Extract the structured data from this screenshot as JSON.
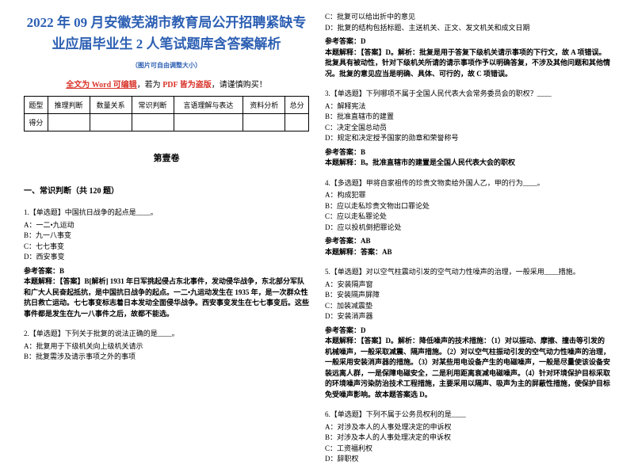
{
  "header": {
    "title": "2022 年 09 月安徽芜湖市教育局公开招聘紧缺专业应届毕业生 2 人笔试题库含答案解析",
    "subtitle": "（图片可自由调整大小）",
    "editable_prefix": "全文为 Word 可编辑",
    "editable_mid": "，若为 ",
    "editable_warn": "PDF 皆为盗版",
    "editable_suffix": "，请谨慎购买！"
  },
  "table": {
    "headers": [
      "题型",
      "推理判断",
      "数量关系",
      "常识判断",
      "言语理解与表达",
      "资料分析",
      "总分"
    ],
    "row_label": "得分"
  },
  "juan": "第壹卷",
  "category": "一、常识判断（共 120 题）",
  "q1": {
    "text": "1.【单选题】中国抗日战争的起点是____。",
    "a": "A：一二•九运动",
    "b": "B：九一八事变",
    "c": "C：七七事变",
    "d": "D：西安事变",
    "ans_label": "参考答案：B",
    "ans_text": "本题解释：【答案】B[解析] 1931 年日军挑起侵占东北事件，发动侵华战争，东北部分军队和广大人民奋起抵抗，是中国抗日战争的起点。一二•九运动发生在 1935 年，是一次群众性抗日救亡运动。七七事变标志着日本发动全面侵华战争。西安事变发生在七七事变后。这些事件都是发生在九一八事件之后，故都不能选。"
  },
  "q2": {
    "text": "2.【单选题】下列关于批复的说法正确的是____。",
    "a": "A：批复用于下级机关向上级机关请示",
    "b": "B：批复需涉及请示事项之外的事项",
    "c": "C：批复可以给出折中的意见",
    "d": "D：批复的结构包括标题、主送机关、正文、发文机关和成文日期",
    "ans_label": "参考答案：D",
    "ans_text": "本题解释：【答案】D。解析：批复是用于答复下级机关请示事项的下行文，故 A 项错误。批复具有被动性，针对下级机关所请的请示事项作予以明确答复，不涉及其他问题和其他情况。批复的意见应当是明确、具体、可行的，故 C 项错误。"
  },
  "q3": {
    "text": "3.【单选题】下列哪项不属于全国人民代表大会常务委员会的职权？____",
    "a": "A：解释宪法",
    "b": "B：批准直辖市的建置",
    "c": "C：决定全国总动员",
    "d": "D：规定和决定授予国家的勋章和荣誉称号",
    "ans_label": "参考答案：B",
    "ans_text": "本题解释：B。批准直辖市的建置是全国人民代表大会的职权"
  },
  "q4": {
    "text": "4.【多选题】甲将自家祖传的珍贵文物卖给外国人乙，甲的行为____。",
    "a": "A：构成犯罪",
    "b": "B：应以走私珍贵文物出口罪论处",
    "c": "C：应以走私罪论处",
    "d": "D：应以投机倒把罪论处",
    "ans_label": "参考答案：AB",
    "ans_text": "本题解释：答案：AB"
  },
  "q5": {
    "text": "5.【单选题】对以空气柱震动引发的空气动力性噪声的治理，一般采用____措施。",
    "a": "A：安装隔声窗",
    "b": "B：安装隔声屏障",
    "c": "C：加装减震垫",
    "d": "D：安装消声器",
    "ans_label": "参考答案：D",
    "ans_text": "本题解释：【答案】D。解析：降低噪声的技术措施：（1）对以振动、摩擦、撞击等引发的机械噪声，一般采取减震、隔声措施。（2）对以空气柱振动引发的空气动力性噪声的治理，一般采用安装消声器的措施。（3）对某些用电设备产生的电磁噪声，一般是尽量使该设备安装远离人群，一是保障电磁安全，二是利用距离衰减电磁噪声。（4）针对环境保护目标采取的环境噪声污染防治技术工程措施，主要采用以隔声、吸声为主的屏蔽性措施，使保护目标免受噪声影响。故本题答案选 D。"
  },
  "q6": {
    "text": "6.【单选题】下列不属于公务员权利的是____",
    "a": "A：对涉及本人的人事处理决定的申诉权",
    "b": "B：对涉及本人的人事处理决定的申诉权",
    "c": "C：工资福利权",
    "d": "D：辞职权"
  }
}
